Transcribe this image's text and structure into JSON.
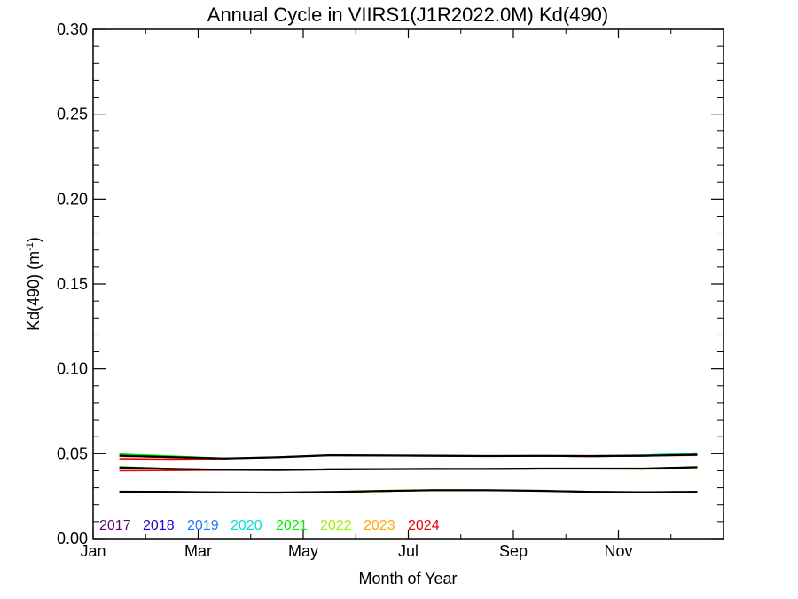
{
  "chart_data": {
    "type": "line",
    "title": "Annual Cycle in VIIRS1(J1R2022.0M) Kd(490)",
    "xlabel": "Month of Year",
    "ylabel_main": "Kd(490) (m",
    "ylabel_sup": "-1",
    "ylabel_close": ")",
    "xlim": [
      0,
      12
    ],
    "ylim": [
      0.0,
      0.3
    ],
    "x_ticks": [
      {
        "value": 0,
        "label": "Jan"
      },
      {
        "value": 2,
        "label": "Mar"
      },
      {
        "value": 4,
        "label": "May"
      },
      {
        "value": 6,
        "label": "Jul"
      },
      {
        "value": 8,
        "label": "Sep"
      },
      {
        "value": 10,
        "label": "Nov"
      }
    ],
    "x_minor_ticks": [
      1,
      3,
      5,
      7,
      9,
      11
    ],
    "y_ticks": [
      {
        "value": 0.0,
        "label": "0.00"
      },
      {
        "value": 0.05,
        "label": "0.05"
      },
      {
        "value": 0.1,
        "label": "0.10"
      },
      {
        "value": 0.15,
        "label": "0.15"
      },
      {
        "value": 0.2,
        "label": "0.20"
      },
      {
        "value": 0.25,
        "label": "0.25"
      },
      {
        "value": 0.3,
        "label": "0.30"
      }
    ],
    "y_minor_step": 0.01,
    "grid": false,
    "legend_placement": "bottom-left",
    "x": [
      0.5,
      1.5,
      2.5,
      3.5,
      4.5,
      5.5,
      6.5,
      7.5,
      8.5,
      9.5,
      10.5,
      11.5
    ],
    "series": [
      {
        "name": "2017",
        "color": "#5a0a6e",
        "group": "upper",
        "values": [
          0.0485,
          0.0478,
          0.0472,
          0.0478,
          0.049,
          0.0488,
          0.0487,
          0.0485,
          0.0486,
          0.0484,
          0.0487,
          0.0492
        ]
      },
      {
        "name": "2017",
        "color": "#5a0a6e",
        "group": "middle",
        "values": [
          0.0418,
          0.041,
          0.0406,
          0.0404,
          0.0408,
          0.041,
          0.041,
          0.0411,
          0.0413,
          0.0414,
          0.0412,
          0.042
        ]
      },
      {
        "name": "2017",
        "color": "#5a0a6e",
        "group": "lower",
        "values": [
          0.0277,
          0.0275,
          0.0273,
          0.0271,
          0.0274,
          0.028,
          0.0286,
          0.0285,
          0.0282,
          0.0276,
          0.0273,
          0.0276
        ]
      },
      {
        "name": "2018",
        "color": "#2200cc",
        "group": "upper",
        "values": [
          0.0486,
          0.0479,
          0.0471,
          0.0479,
          0.0491,
          0.0489,
          0.0488,
          0.0486,
          0.0487,
          0.0485,
          0.0488,
          0.0493
        ]
      },
      {
        "name": "2018",
        "color": "#2200cc",
        "group": "middle",
        "values": [
          0.0419,
          0.0411,
          0.0405,
          0.0405,
          0.0409,
          0.0411,
          0.0412,
          0.041,
          0.0412,
          0.0413,
          0.0413,
          0.0421
        ]
      },
      {
        "name": "2018",
        "color": "#2200cc",
        "group": "lower",
        "values": [
          0.0278,
          0.0276,
          0.0274,
          0.0272,
          0.0275,
          0.0281,
          0.0287,
          0.0286,
          0.0283,
          0.0277,
          0.0274,
          0.0277
        ]
      },
      {
        "name": "2019",
        "color": "#1e78ff",
        "group": "upper",
        "values": [
          0.0488,
          0.048,
          0.0472,
          0.0478,
          0.0492,
          0.049,
          0.0488,
          0.0487,
          0.0488,
          0.0486,
          0.049,
          0.05
        ]
      },
      {
        "name": "2019",
        "color": "#1e78ff",
        "group": "middle",
        "values": [
          0.042,
          0.0412,
          0.0406,
          0.0404,
          0.0409,
          0.041,
          0.0411,
          0.0411,
          0.0414,
          0.0413,
          0.0414,
          0.0422
        ]
      },
      {
        "name": "2019",
        "color": "#1e78ff",
        "group": "lower",
        "values": [
          0.0277,
          0.0276,
          0.0273,
          0.0272,
          0.0274,
          0.028,
          0.0286,
          0.0286,
          0.0282,
          0.0277,
          0.0274,
          0.0276
        ]
      },
      {
        "name": "2020",
        "color": "#00e0d0",
        "group": "upper",
        "values": [
          0.049,
          0.0481,
          0.0473,
          0.0479,
          0.0491,
          0.0489,
          0.0487,
          0.0486,
          0.0487,
          0.0487,
          0.0492,
          0.0505
        ]
      },
      {
        "name": "2020",
        "color": "#00e0d0",
        "group": "middle",
        "values": [
          0.0421,
          0.0411,
          0.0407,
          0.0405,
          0.0408,
          0.041,
          0.0411,
          0.0412,
          0.0413,
          0.0414,
          0.0413,
          0.0421
        ]
      },
      {
        "name": "2020",
        "color": "#00e0d0",
        "group": "lower",
        "values": [
          0.0278,
          0.0275,
          0.0274,
          0.0271,
          0.0275,
          0.0281,
          0.0286,
          0.0285,
          0.0283,
          0.0277,
          0.0273,
          0.0277
        ]
      },
      {
        "name": "2021",
        "color": "#00ee00",
        "group": "upper",
        "values": [
          0.0498,
          0.0486,
          0.0472,
          0.048,
          0.0491,
          0.0489,
          0.0488,
          0.0487,
          0.0487,
          0.0486,
          0.0489,
          0.0496
        ]
      },
      {
        "name": "2021",
        "color": "#00ee00",
        "group": "middle",
        "values": [
          0.0423,
          0.0412,
          0.0406,
          0.0404,
          0.0409,
          0.0411,
          0.041,
          0.0411,
          0.0413,
          0.0414,
          0.0413,
          0.0421
        ]
      },
      {
        "name": "2021",
        "color": "#00ee00",
        "group": "lower",
        "values": [
          0.0278,
          0.0276,
          0.0273,
          0.0272,
          0.0276,
          0.0282,
          0.0287,
          0.0286,
          0.0282,
          0.0276,
          0.0274,
          0.0277
        ]
      },
      {
        "name": "2022",
        "color": "#99ee00",
        "group": "upper",
        "values": [
          0.0487,
          0.0479,
          0.0472,
          0.0479,
          0.049,
          0.0489,
          0.0487,
          0.0486,
          0.0487,
          0.0485,
          0.0488,
          0.0494
        ]
      },
      {
        "name": "2022",
        "color": "#99ee00",
        "group": "middle",
        "values": [
          0.0419,
          0.0411,
          0.0406,
          0.0404,
          0.0408,
          0.041,
          0.0411,
          0.0411,
          0.0413,
          0.0413,
          0.0413,
          0.042
        ]
      },
      {
        "name": "2022",
        "color": "#99ee00",
        "group": "lower",
        "values": [
          0.0277,
          0.0276,
          0.0273,
          0.0272,
          0.0277,
          0.0284,
          0.0288,
          0.0287,
          0.0283,
          0.0276,
          0.0274,
          0.0276
        ]
      },
      {
        "name": "2023",
        "color": "#ffaa00",
        "group": "upper",
        "values": [
          0.0485,
          0.0478,
          0.0471,
          0.0478,
          0.049,
          0.0488,
          0.0487,
          0.0485,
          0.0486,
          0.0484,
          0.0486,
          0.049
        ]
      },
      {
        "name": "2023",
        "color": "#ffaa00",
        "group": "middle",
        "values": [
          0.0417,
          0.041,
          0.0405,
          0.0404,
          0.0408,
          0.041,
          0.041,
          0.041,
          0.0412,
          0.0412,
          0.041,
          0.0414
        ]
      },
      {
        "name": "2023",
        "color": "#ffaa00",
        "group": "lower",
        "values": [
          0.0276,
          0.0275,
          0.0272,
          0.0271,
          0.0274,
          0.028,
          0.0285,
          0.0285,
          0.0282,
          0.0276,
          0.0273,
          0.0276
        ]
      },
      {
        "name": "2024",
        "color": "#ee0000",
        "group": "upper",
        "values": [
          0.047,
          0.0468,
          0.047,
          0.0478,
          0.049,
          0.0488,
          0.0487,
          0.0485,
          0.0486,
          0.0484,
          0.0487,
          0.0492
        ]
      },
      {
        "name": "2024",
        "color": "#ee0000",
        "group": "middle",
        "values": [
          0.04,
          0.0402,
          0.0404,
          0.0404,
          0.0408,
          0.041,
          0.041,
          0.0411,
          0.0413,
          0.0414,
          0.0412,
          0.042
        ]
      },
      {
        "name": "2024",
        "color": "#ee0000",
        "group": "lower",
        "values": [
          0.0276,
          0.0275,
          0.0273,
          0.0271,
          0.0274,
          0.028,
          0.0286,
          0.0285,
          0.0282,
          0.0276,
          0.0273,
          0.0276
        ]
      },
      {
        "name": "",
        "color": "#000000",
        "group": "upper",
        "values": [
          0.0488,
          0.048,
          0.0472,
          0.0479,
          0.0491,
          0.0489,
          0.0488,
          0.0486,
          0.0487,
          0.0486,
          0.0488,
          0.0494
        ]
      },
      {
        "name": "",
        "color": "#000000",
        "group": "middle",
        "values": [
          0.0419,
          0.0411,
          0.0406,
          0.0404,
          0.0408,
          0.041,
          0.0411,
          0.0411,
          0.0413,
          0.0413,
          0.0413,
          0.0421
        ]
      },
      {
        "name": "",
        "color": "#000000",
        "group": "lower",
        "values": [
          0.0277,
          0.0276,
          0.0273,
          0.0272,
          0.0275,
          0.0281,
          0.0286,
          0.0286,
          0.0282,
          0.0276,
          0.0274,
          0.0276
        ]
      }
    ],
    "legend": [
      {
        "label": "2017",
        "color": "#5a0a6e"
      },
      {
        "label": "2018",
        "color": "#2200cc"
      },
      {
        "label": "2019",
        "color": "#1e78ff"
      },
      {
        "label": "2020",
        "color": "#00e0d0"
      },
      {
        "label": "2021",
        "color": "#00ee00"
      },
      {
        "label": "2022",
        "color": "#99ee00"
      },
      {
        "label": "2023",
        "color": "#ffaa00"
      },
      {
        "label": "2024",
        "color": "#ee0000"
      }
    ]
  }
}
